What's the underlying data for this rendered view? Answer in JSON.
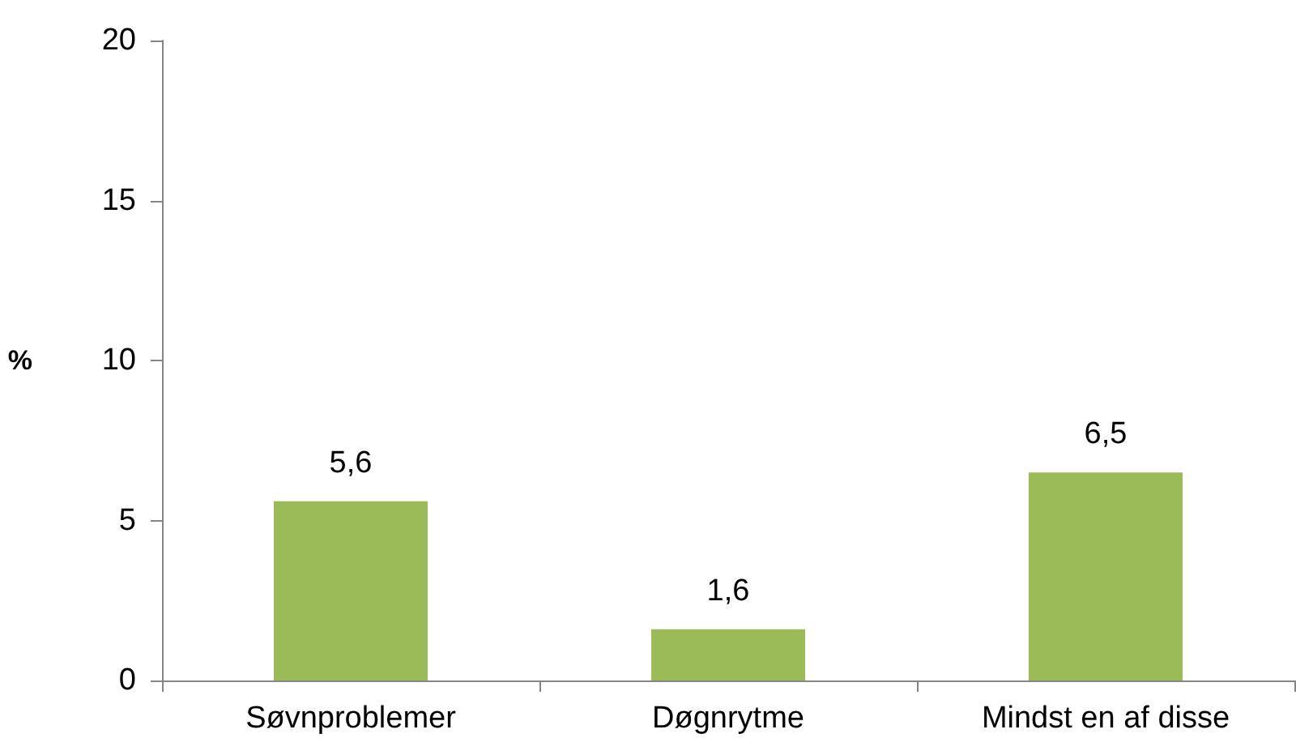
{
  "chart_data": {
    "type": "bar",
    "ylabel": "%",
    "categories": [
      "Søvnproblemer",
      "Døgnrytme",
      "Mindst en af disse"
    ],
    "values": [
      5.6,
      1.6,
      6.5
    ],
    "color": "#9bbb59",
    "value_labels": [
      "5,6",
      "1,6",
      "6,5"
    ],
    "ylim": [
      0,
      20
    ],
    "yticks": [
      0,
      5,
      10,
      15,
      20
    ]
  }
}
